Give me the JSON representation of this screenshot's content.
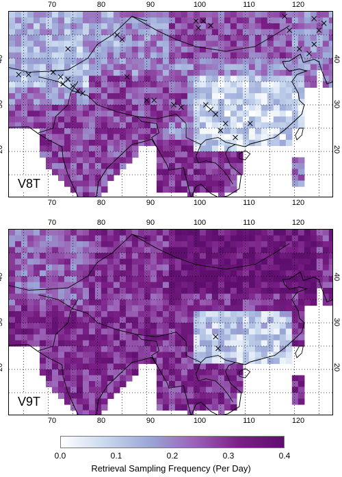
{
  "panels": [
    {
      "id": "v8t",
      "label": "V8T",
      "x_ticks": [
        "70",
        "80",
        "90",
        "100",
        "110",
        "120"
      ],
      "y_ticks": [
        "20",
        "30",
        "40"
      ]
    },
    {
      "id": "v9t",
      "label": "V9T",
      "x_ticks": [
        "70",
        "80",
        "90",
        "100",
        "110",
        "120"
      ],
      "y_ticks": [
        "20",
        "30",
        "40"
      ]
    }
  ],
  "colorbar": {
    "title": "Retrieval Sampling Frequency (Per Day)",
    "ticks": [
      "0.0",
      "0.1",
      "0.2",
      "0.3",
      "0.4"
    ],
    "min": 0.0,
    "max": 0.4,
    "colors": [
      "#ffffff",
      "#c8d8ee",
      "#9aa6d6",
      "#9b62b6",
      "#7a1f86",
      "#5e0f6e"
    ]
  },
  "map": {
    "lon_range": [
      62,
      128
    ],
    "lat_range": [
      10,
      50
    ],
    "grid_step_deg": 5
  }
}
